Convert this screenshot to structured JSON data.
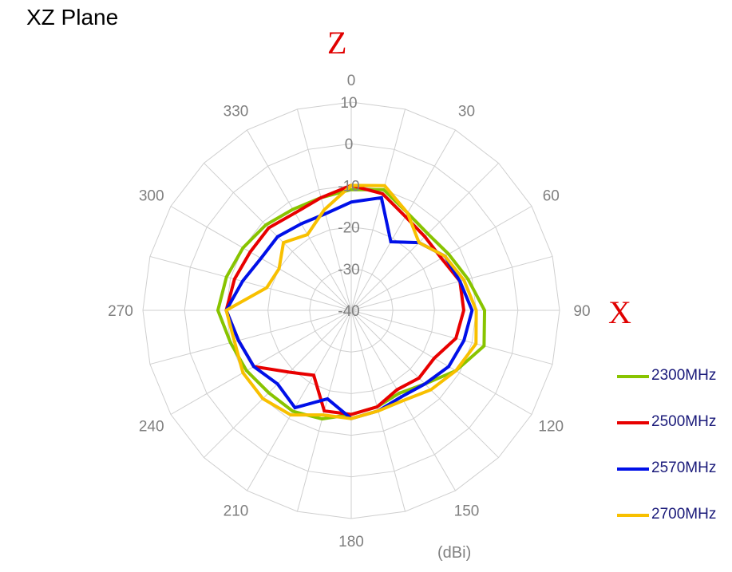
{
  "title": "XZ Plane",
  "axis_letters": {
    "z": "Z",
    "x": "X"
  },
  "unit_label": "(dBi)",
  "chart_data": {
    "type": "line",
    "subtype": "polar-radar",
    "title": "XZ Plane",
    "angle_labels": [
      "0",
      "30",
      "60",
      "90",
      "120",
      "150",
      "180",
      "210",
      "240",
      "270",
      "300",
      "330"
    ],
    "angle_step_deg": 15,
    "radial_ticks": [
      "-40",
      "-30",
      "-20",
      "-10",
      "0",
      "10"
    ],
    "rlim": [
      -40,
      10
    ],
    "grid": true,
    "legend_position": "right",
    "angles": [
      0,
      15,
      30,
      45,
      60,
      75,
      90,
      105,
      120,
      135,
      150,
      165,
      180,
      195,
      210,
      225,
      240,
      255,
      270,
      285,
      300,
      315,
      330,
      345
    ],
    "series": [
      {
        "name": "2300MHz",
        "color": "#88c400",
        "values": [
          -11,
          -10,
          -13,
          -14,
          -13,
          -11,
          -8,
          -7,
          -11,
          -15,
          -17,
          -16,
          -15,
          -13,
          -12,
          -12,
          -11,
          -10,
          -8,
          -9,
          -10,
          -11,
          -12,
          -12
        ]
      },
      {
        "name": "2500MHz",
        "color": "#e80000",
        "values": [
          -10,
          -11,
          -14,
          -15,
          -15,
          -13,
          -13,
          -14,
          -17,
          -17,
          -18,
          -16,
          -15,
          -15,
          -22,
          -19,
          -13,
          -12,
          -10,
          -11,
          -12,
          -12,
          -13,
          -12
        ]
      },
      {
        "name": "2570MHz",
        "color": "#0010e8",
        "values": [
          -14,
          -12,
          -21,
          -17,
          -14,
          -13,
          -11,
          -12,
          -13,
          -15,
          -16,
          -15,
          -14,
          -18,
          -13,
          -15,
          -13,
          -12,
          -10,
          -13,
          -15,
          -15,
          -16,
          -16
        ]
      },
      {
        "name": "2700MHz",
        "color": "#f8c000",
        "values": [
          -10,
          -9,
          -13,
          -17,
          -14,
          -12,
          -10,
          -9,
          -11,
          -13,
          -15,
          -15,
          -14,
          -14,
          -11,
          -10,
          -10,
          -11,
          -10,
          -19,
          -20,
          -17,
          -19,
          -15
        ]
      }
    ]
  }
}
